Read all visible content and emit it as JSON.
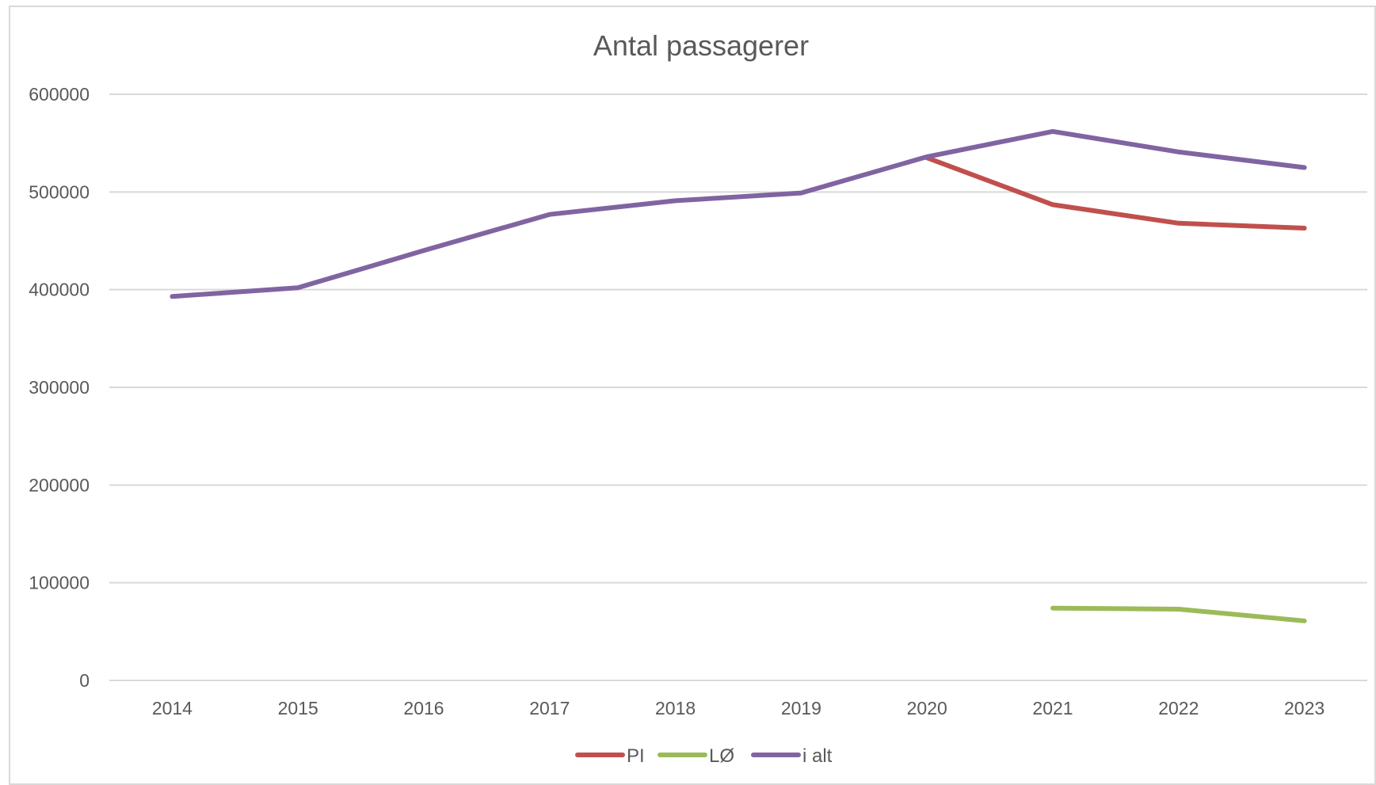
{
  "chart_data": {
    "type": "line",
    "title": "Antal passagerer",
    "xlabel": "",
    "ylabel": "",
    "categories": [
      "2014",
      "2015",
      "2016",
      "2017",
      "2018",
      "2019",
      "2020",
      "2021",
      "2022",
      "2023"
    ],
    "ylim": [
      0,
      600000
    ],
    "yticks": [
      "0",
      "100000",
      "200000",
      "300000",
      "400000",
      "500000",
      "600000"
    ],
    "grid": true,
    "legend_position": "bottom",
    "series": [
      {
        "name": "PI",
        "color": "#c0504d",
        "values": [
          null,
          null,
          null,
          null,
          null,
          null,
          535000,
          487000,
          468000,
          463000
        ]
      },
      {
        "name": "LØ",
        "color": "#9bbb59",
        "values": [
          null,
          null,
          null,
          null,
          null,
          null,
          null,
          74000,
          73000,
          61000
        ]
      },
      {
        "name": "i alt",
        "color": "#8064a2",
        "values": [
          393000,
          402000,
          440000,
          477000,
          491000,
          499000,
          536000,
          562000,
          541000,
          525000
        ]
      }
    ]
  }
}
